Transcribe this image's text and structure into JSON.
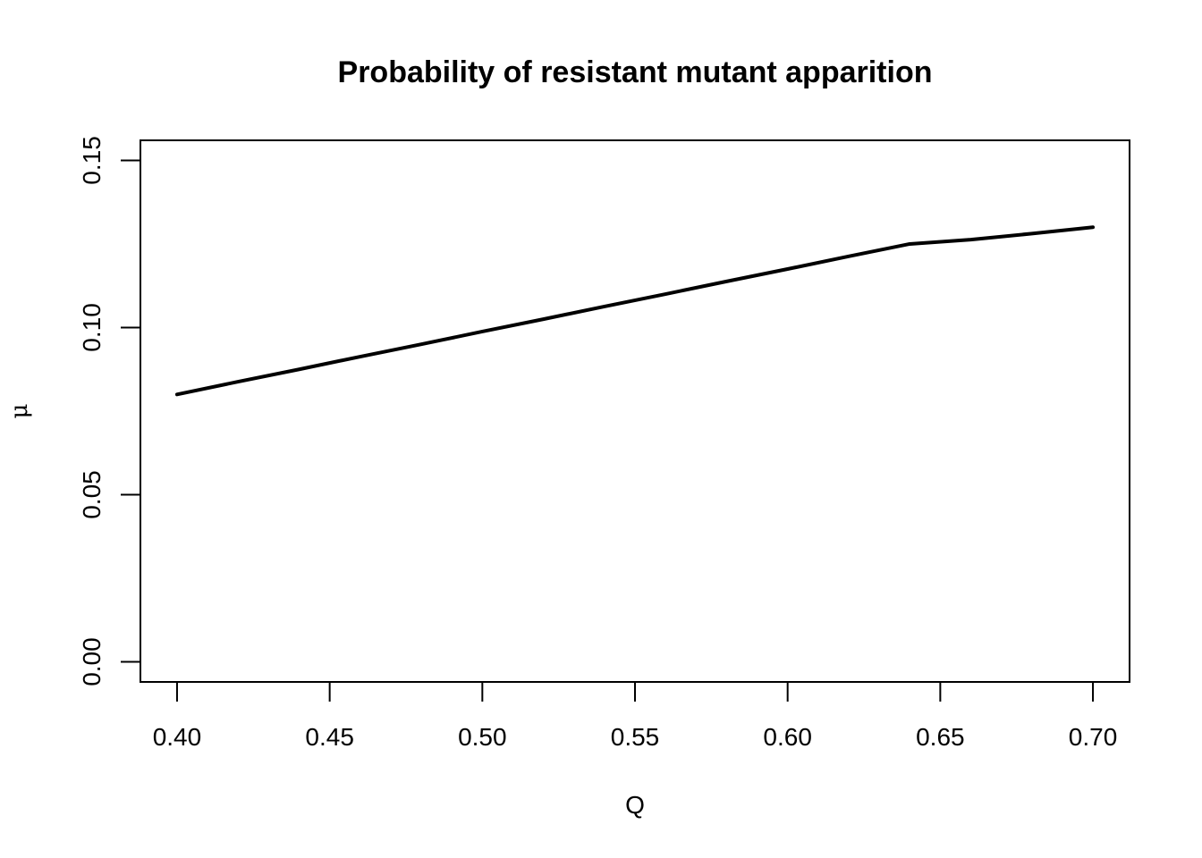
{
  "chart_data": {
    "type": "line",
    "title": "Probability of resistant mutant apparition",
    "xlabel": "Q",
    "ylabel": "μ",
    "xlim": [
      0.388,
      0.712
    ],
    "ylim": [
      -0.006,
      0.156
    ],
    "xticks": [
      0.4,
      0.45,
      0.5,
      0.55,
      0.6,
      0.65,
      0.7
    ],
    "xtick_labels": [
      "0.40",
      "0.45",
      "0.50",
      "0.55",
      "0.60",
      "0.65",
      "0.70"
    ],
    "yticks": [
      0.0,
      0.05,
      0.1,
      0.15
    ],
    "ytick_labels": [
      "0.00",
      "0.05",
      "0.10",
      "0.15"
    ],
    "grid": false,
    "legend": "none",
    "series": [
      {
        "color": "#000000",
        "x": [
          0.4,
          0.42,
          0.44,
          0.46,
          0.48,
          0.5,
          0.52,
          0.54,
          0.56,
          0.58,
          0.6,
          0.62,
          0.64,
          0.66,
          0.68,
          0.7
        ],
        "y": [
          0.08,
          0.0838,
          0.0875,
          0.0913,
          0.095,
          0.0988,
          0.1025,
          0.1063,
          0.11,
          0.1138,
          0.1175,
          0.1213,
          0.125,
          0.1263,
          0.1281,
          0.13
        ]
      }
    ]
  }
}
